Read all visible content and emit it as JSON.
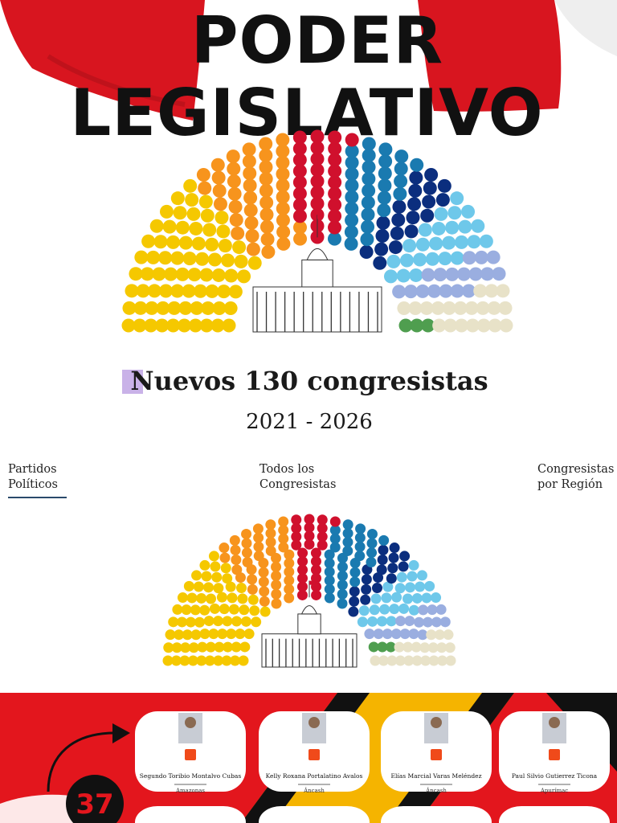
{
  "header": {
    "title_line1": "PODER",
    "title_line2": "LEGISLATIVO",
    "heading": "Nuevos 130 congresistas",
    "period": "2021 - 2026"
  },
  "tabs": [
    [
      "Partidos",
      "Políticos"
    ],
    [
      "Todos los",
      "Congresistas"
    ],
    [
      "Congresistas",
      "por Región"
    ]
  ],
  "badge": "37",
  "cards": [
    {
      "name": "Segundo Toribio Montalvo Cubas",
      "region": "Amazonas"
    },
    {
      "name": "Kelly Roxana Portalatino Avalos",
      "region": "Áncash"
    },
    {
      "name": "Elías Marcial Varas Meléndez",
      "region": "Áncash"
    },
    {
      "name": "Paul Silvio Gutierrez Ticona",
      "region": "Apurímac"
    }
  ]
}
